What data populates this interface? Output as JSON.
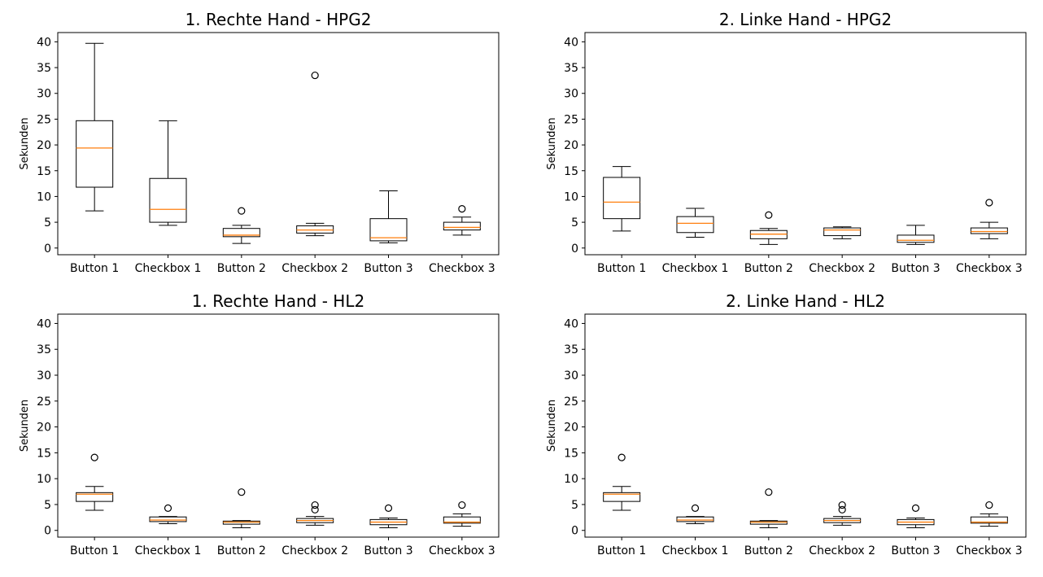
{
  "chart_data": [
    {
      "type": "boxplot",
      "title": "1. Rechte Hand - HPG2",
      "ylabel": "Sekunden",
      "ylim": [
        -1.3,
        41.8
      ],
      "yticks": [
        0,
        5,
        10,
        15,
        20,
        25,
        30,
        35,
        40
      ],
      "categories": [
        "Button 1",
        "Checkbox 1",
        "Button 2",
        "Checkbox 2",
        "Button 3",
        "Checkbox 3"
      ],
      "boxes": [
        {
          "whislo": 7.2,
          "q1": 11.8,
          "med": 19.4,
          "q3": 24.7,
          "whishi": 39.7,
          "fliers": []
        },
        {
          "whislo": 4.4,
          "q1": 5.0,
          "med": 7.5,
          "q3": 13.5,
          "whishi": 24.7,
          "fliers": []
        },
        {
          "whislo": 0.9,
          "q1": 2.2,
          "med": 2.5,
          "q3": 3.8,
          "whishi": 4.4,
          "fliers": [
            7.2
          ]
        },
        {
          "whislo": 2.4,
          "q1": 2.9,
          "med": 3.5,
          "q3": 4.3,
          "whishi": 4.8,
          "fliers": [
            33.5
          ]
        },
        {
          "whislo": 1.0,
          "q1": 1.4,
          "med": 2.0,
          "q3": 5.7,
          "whishi": 11.1,
          "fliers": []
        },
        {
          "whislo": 2.5,
          "q1": 3.5,
          "med": 4.0,
          "q3": 5.0,
          "whishi": 6.0,
          "fliers": [
            7.6
          ]
        }
      ]
    },
    {
      "type": "boxplot",
      "title": "2. Linke Hand - HPG2",
      "ylabel": "Sekunden",
      "ylim": [
        -1.3,
        41.8
      ],
      "yticks": [
        0,
        5,
        10,
        15,
        20,
        25,
        30,
        35,
        40
      ],
      "categories": [
        "Button 1",
        "Checkbox 1",
        "Button 2",
        "Checkbox 2",
        "Button 3",
        "Checkbox 3"
      ],
      "boxes": [
        {
          "whislo": 3.3,
          "q1": 5.7,
          "med": 8.9,
          "q3": 13.7,
          "whishi": 15.8,
          "fliers": []
        },
        {
          "whislo": 2.1,
          "q1": 3.0,
          "med": 4.8,
          "q3": 6.1,
          "whishi": 7.7,
          "fliers": []
        },
        {
          "whislo": 0.7,
          "q1": 1.8,
          "med": 2.7,
          "q3": 3.4,
          "whishi": 3.8,
          "fliers": [
            6.4
          ]
        },
        {
          "whislo": 1.8,
          "q1": 2.4,
          "med": 3.5,
          "q3": 3.9,
          "whishi": 4.1,
          "fliers": []
        },
        {
          "whislo": 0.7,
          "q1": 1.1,
          "med": 1.5,
          "q3": 2.5,
          "whishi": 4.4,
          "fliers": []
        },
        {
          "whislo": 1.8,
          "q1": 2.8,
          "med": 3.2,
          "q3": 3.9,
          "whishi": 5.0,
          "fliers": [
            8.8
          ]
        }
      ]
    },
    {
      "type": "boxplot",
      "title": "1. Rechte Hand - HL2",
      "ylabel": "Sekunden",
      "ylim": [
        -1.3,
        41.8
      ],
      "yticks": [
        0,
        5,
        10,
        15,
        20,
        25,
        30,
        35,
        40
      ],
      "categories": [
        "Button 1",
        "Checkbox 1",
        "Button 2",
        "Checkbox 2",
        "Button 3",
        "Checkbox 3"
      ],
      "boxes": [
        {
          "whislo": 3.9,
          "q1": 5.6,
          "med": 7.0,
          "q3": 7.3,
          "whishi": 8.5,
          "fliers": [
            14.1
          ]
        },
        {
          "whislo": 1.3,
          "q1": 1.7,
          "med": 2.0,
          "q3": 2.6,
          "whishi": 2.7,
          "fliers": [
            4.3
          ]
        },
        {
          "whislo": 0.5,
          "q1": 1.2,
          "med": 1.6,
          "q3": 1.8,
          "whishi": 1.9,
          "fliers": [
            7.4
          ]
        },
        {
          "whislo": 1.0,
          "q1": 1.5,
          "med": 1.9,
          "q3": 2.3,
          "whishi": 2.7,
          "fliers": [
            4.9,
            4.0
          ]
        },
        {
          "whislo": 0.5,
          "q1": 1.1,
          "med": 1.6,
          "q3": 2.1,
          "whishi": 2.4,
          "fliers": [
            4.3
          ]
        },
        {
          "whislo": 0.8,
          "q1": 1.4,
          "med": 1.6,
          "q3": 2.6,
          "whishi": 3.2,
          "fliers": [
            4.9
          ]
        }
      ]
    },
    {
      "type": "boxplot",
      "title": "2. Linke Hand - HL2",
      "ylabel": "Sekunden",
      "ylim": [
        -1.3,
        41.8
      ],
      "yticks": [
        0,
        5,
        10,
        15,
        20,
        25,
        30,
        35,
        40
      ],
      "categories": [
        "Button 1",
        "Checkbox 1",
        "Button 2",
        "Checkbox 2",
        "Button 3",
        "Checkbox 3"
      ],
      "boxes": [
        {
          "whislo": 3.9,
          "q1": 5.6,
          "med": 7.0,
          "q3": 7.3,
          "whishi": 8.5,
          "fliers": [
            14.1
          ]
        },
        {
          "whislo": 1.3,
          "q1": 1.7,
          "med": 2.0,
          "q3": 2.6,
          "whishi": 2.7,
          "fliers": [
            4.3
          ]
        },
        {
          "whislo": 0.5,
          "q1": 1.2,
          "med": 1.6,
          "q3": 1.8,
          "whishi": 1.9,
          "fliers": [
            7.4
          ]
        },
        {
          "whislo": 1.0,
          "q1": 1.5,
          "med": 1.9,
          "q3": 2.3,
          "whishi": 2.7,
          "fliers": [
            4.9,
            4.0
          ]
        },
        {
          "whislo": 0.5,
          "q1": 1.1,
          "med": 1.6,
          "q3": 2.1,
          "whishi": 2.4,
          "fliers": [
            4.3
          ]
        },
        {
          "whislo": 0.8,
          "q1": 1.4,
          "med": 1.6,
          "q3": 2.6,
          "whishi": 3.2,
          "fliers": [
            4.9
          ]
        }
      ]
    }
  ],
  "colors": {
    "box": "#000000",
    "median": "#ff7f0e",
    "flier": "#000000",
    "axes": "#000000"
  }
}
